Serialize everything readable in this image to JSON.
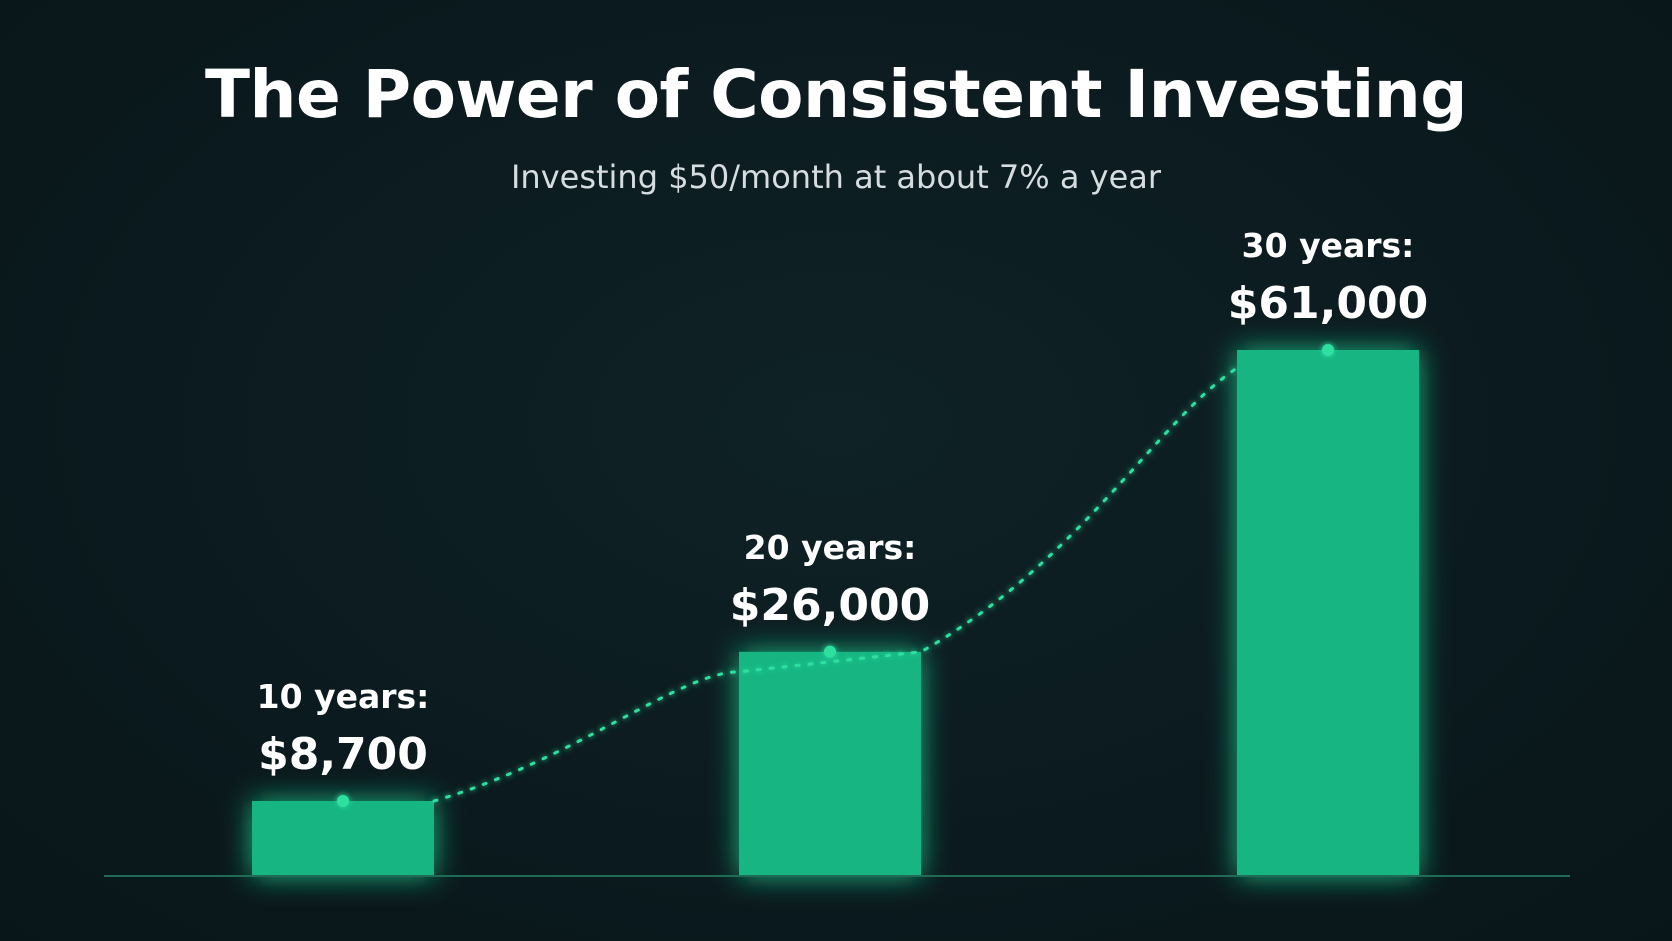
{
  "title": "The Power of Consistent Investing",
  "subtitle": "Investing $50/month at about 7% a year",
  "colors": {
    "background": "#0b1a1e",
    "bar": "#14b582",
    "trend": "#2fe0a0",
    "baseline": "#1f6b55"
  },
  "chart_data": {
    "type": "bar",
    "categories": [
      "10 years:",
      "20 years:",
      "30 years:"
    ],
    "values": [
      8700,
      26000,
      61000
    ],
    "value_labels": [
      "$8,700",
      "$26,000",
      "$61,000"
    ],
    "title": "The Power of Consistent Investing",
    "subtitle": "Investing $50/month at about 7% a year",
    "xlabel": "",
    "ylabel": "",
    "ylim": [
      0,
      61000
    ],
    "grid": false,
    "legend": "none",
    "trend_line": "dotted"
  }
}
